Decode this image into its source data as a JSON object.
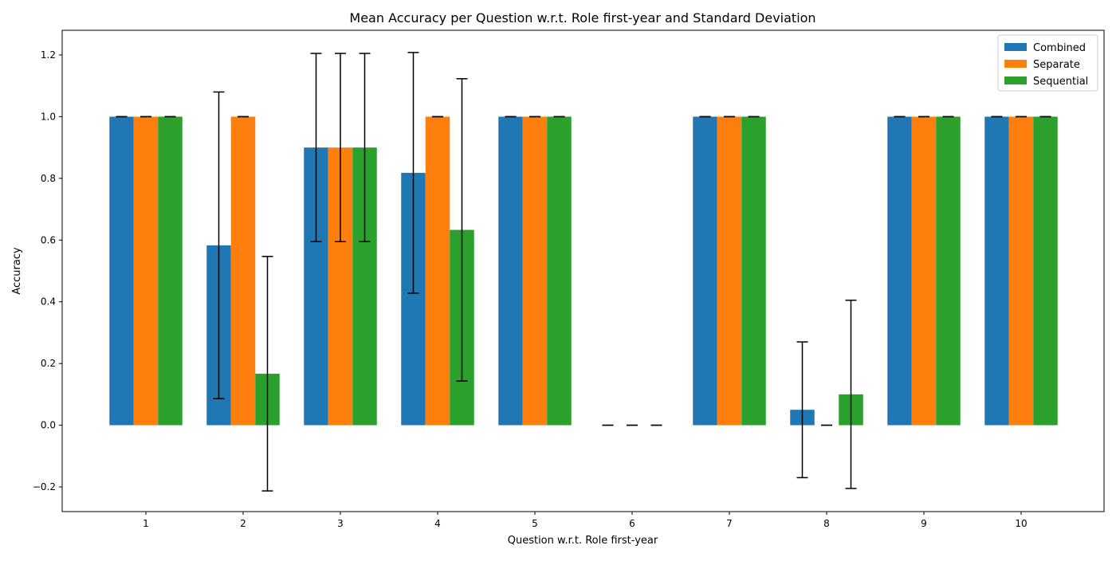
{
  "chart_data": {
    "type": "bar",
    "title": "Mean Accuracy per Question w.r.t. Role first-year and Standard Deviation",
    "xlabel": "Question w.r.t. Role first-year",
    "ylabel": "Accuracy",
    "ylim": [
      -0.28,
      1.28
    ],
    "yticks": [
      -0.2,
      0.0,
      0.2,
      0.4,
      0.6,
      0.8,
      1.0,
      1.2
    ],
    "ytick_labels": [
      "−0.2",
      "0.0",
      "0.2",
      "0.4",
      "0.6",
      "0.8",
      "1.0",
      "1.2"
    ],
    "categories": [
      "1",
      "2",
      "3",
      "4",
      "5",
      "6",
      "7",
      "8",
      "9",
      "10"
    ],
    "grid": false,
    "legend_position": "top-right",
    "series": [
      {
        "name": "Combined",
        "color": "#1f77b4",
        "values": [
          1.0,
          0.583,
          0.9,
          0.818,
          1.0,
          0.0,
          1.0,
          0.05,
          1.0,
          1.0
        ],
        "std": [
          0.0,
          0.497,
          0.305,
          0.39,
          0.0,
          0.0,
          0.0,
          0.22,
          0.0,
          0.0
        ]
      },
      {
        "name": "Separate",
        "color": "#ff7f0e",
        "values": [
          1.0,
          1.0,
          0.9,
          1.0,
          1.0,
          0.0,
          1.0,
          0.0,
          1.0,
          1.0
        ],
        "std": [
          0.0,
          0.0,
          0.305,
          0.0,
          0.0,
          0.0,
          0.0,
          0.0,
          0.0,
          0.0
        ]
      },
      {
        "name": "Sequential",
        "color": "#2ca02c",
        "values": [
          1.0,
          0.167,
          0.9,
          0.633,
          1.0,
          0.0,
          1.0,
          0.1,
          1.0,
          1.0
        ],
        "std": [
          0.0,
          0.38,
          0.305,
          0.49,
          0.0,
          0.0,
          0.0,
          0.305,
          0.0,
          0.0
        ]
      }
    ]
  }
}
